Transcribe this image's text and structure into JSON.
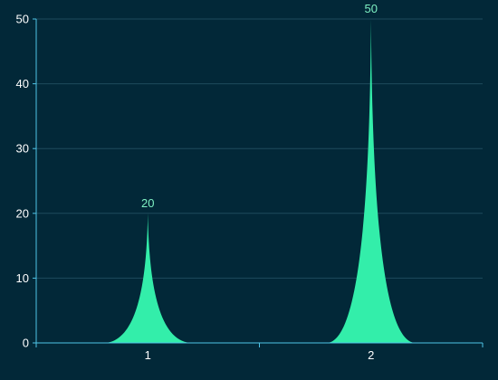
{
  "colors": {
    "background": "#022838",
    "gridline": "#1e4a5c",
    "axis": "#4fc3e6",
    "tick_text": "#ffffff",
    "series": "#33eeaa",
    "data_label": "#7ff2c4"
  },
  "chart_data": {
    "type": "bar",
    "shape": "peak",
    "categories": [
      "1",
      "2"
    ],
    "series": [
      {
        "values": [
          20,
          50
        ]
      }
    ],
    "data_labels": [
      "20",
      "50"
    ],
    "y_ticks": [
      "0",
      "10",
      "20",
      "30",
      "40",
      "50"
    ],
    "ylim": [
      0,
      50
    ],
    "grid": true,
    "legend": "none",
    "title": "",
    "xlabel": "",
    "ylabel": ""
  }
}
